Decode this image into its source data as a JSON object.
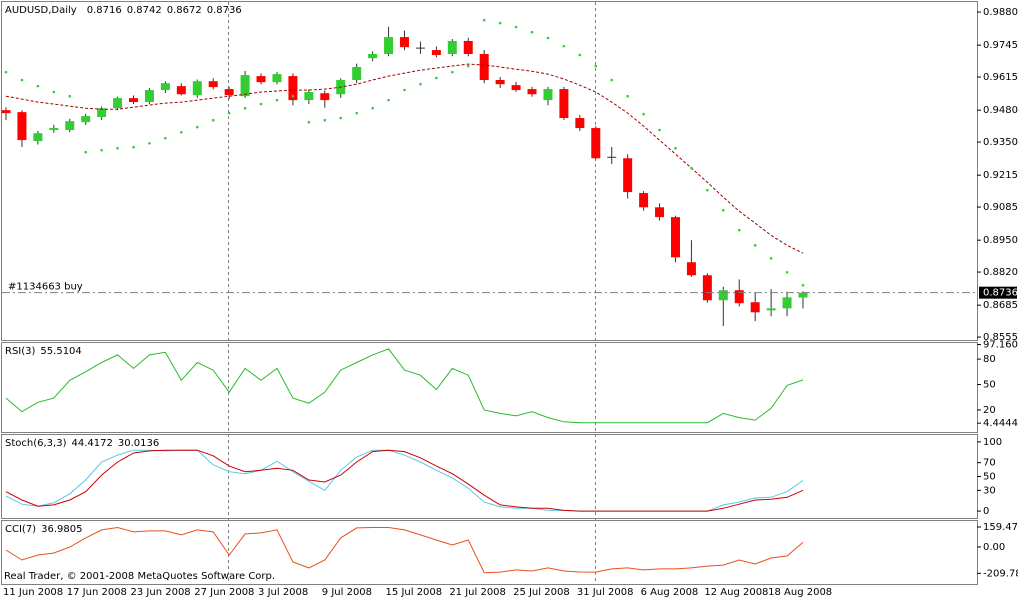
{
  "footer": "Real Trader, © 2001-2008 MetaQuotes Software Corp.",
  "chart_data": [
    {
      "type": "candlestick",
      "title": "AUDUSD,Daily",
      "categories": [
        "11 Jun 2008",
        null,
        null,
        null,
        "17 Jun 2008",
        null,
        null,
        null,
        "23 Jun 2008",
        null,
        null,
        null,
        "27 Jun 2008",
        null,
        null,
        null,
        "3 Jul 2008",
        null,
        null,
        null,
        "9 Jul 2008",
        null,
        null,
        null,
        "15 Jul 2008",
        null,
        null,
        null,
        "21 Jul 2008",
        null,
        null,
        null,
        "25 Jul 2008",
        null,
        null,
        null,
        "31 Jul 2008",
        null,
        null,
        null,
        "6 Aug 2008",
        null,
        null,
        null,
        "12 Aug 2008",
        null,
        null,
        null,
        "18 Aug 2008",
        null,
        null
      ],
      "open": [
        0.948,
        0.9472,
        0.9354,
        0.9399,
        0.9399,
        0.9431,
        0.9452,
        0.9488,
        0.9529,
        0.9513,
        0.9562,
        0.9578,
        0.9541,
        0.9598,
        0.9566,
        0.9537,
        0.9619,
        0.9594,
        0.9619,
        0.9521,
        0.9549,
        0.9545,
        0.9603,
        0.9692,
        0.9709,
        0.9778,
        0.9733,
        0.9725,
        0.9709,
        0.9762,
        0.9709,
        0.9603,
        0.9582,
        0.9566,
        0.9521,
        0.9566,
        0.9448,
        0.9407,
        0.9288,
        0.9284,
        0.9142,
        0.9084,
        0.9044,
        0.886,
        0.8807,
        0.8705,
        0.8746,
        0.8697,
        0.8664,
        0.8672,
        0.8716
      ],
      "high": [
        0.9492,
        0.948,
        0.9395,
        0.942,
        0.9445,
        0.9465,
        0.9495,
        0.9535,
        0.954,
        0.957,
        0.9598,
        0.959,
        0.9605,
        0.961,
        0.9575,
        0.964,
        0.963,
        0.9635,
        0.963,
        0.9565,
        0.956,
        0.961,
        0.967,
        0.972,
        0.982,
        0.9805,
        0.976,
        0.974,
        0.977,
        0.9775,
        0.9725,
        0.9615,
        0.9595,
        0.9575,
        0.9575,
        0.9575,
        0.946,
        0.9415,
        0.933,
        0.93,
        0.915,
        0.91,
        0.905,
        0.895,
        0.8815,
        0.876,
        0.879,
        0.8735,
        0.875,
        0.874,
        0.8742
      ],
      "low": [
        0.944,
        0.933,
        0.934,
        0.9388,
        0.939,
        0.942,
        0.944,
        0.948,
        0.9505,
        0.9505,
        0.955,
        0.954,
        0.953,
        0.9565,
        0.9525,
        0.953,
        0.9585,
        0.9585,
        0.95,
        0.9505,
        0.949,
        0.953,
        0.959,
        0.968,
        0.97,
        0.9725,
        0.971,
        0.9695,
        0.97,
        0.97,
        0.959,
        0.957,
        0.9555,
        0.9535,
        0.95,
        0.944,
        0.9395,
        0.928,
        0.926,
        0.912,
        0.907,
        0.903,
        0.886,
        0.88,
        0.8695,
        0.86,
        0.868,
        0.862,
        0.864,
        0.864,
        0.8672
      ],
      "close": [
        0.9468,
        0.9358,
        0.9386,
        0.9407,
        0.9435,
        0.9456,
        0.9488,
        0.9529,
        0.9513,
        0.9562,
        0.959,
        0.9545,
        0.9598,
        0.9574,
        0.9541,
        0.9623,
        0.9594,
        0.9627,
        0.9521,
        0.9554,
        0.9521,
        0.9603,
        0.9656,
        0.9709,
        0.9778,
        0.9737,
        0.9733,
        0.9705,
        0.9762,
        0.9709,
        0.9603,
        0.9586,
        0.9562,
        0.9545,
        0.9566,
        0.9448,
        0.9407,
        0.9284,
        0.9288,
        0.9146,
        0.9084,
        0.9044,
        0.888,
        0.8807,
        0.8705,
        0.8746,
        0.8693,
        0.8656,
        0.8672,
        0.8717,
        0.8736
      ],
      "up_color": "#32cd32",
      "down_color": "#ff0000",
      "wick_color": "#333333",
      "series": [
        {
          "style": "dashed",
          "color": "#a00000",
          "values": [
            0.9537,
            0.9525,
            0.9513,
            0.9505,
            0.9496,
            0.9488,
            0.9484,
            0.9484,
            0.9492,
            0.9501,
            0.9509,
            0.9513,
            0.9521,
            0.9529,
            0.9537,
            0.9545,
            0.9554,
            0.9558,
            0.9562,
            0.9562,
            0.9566,
            0.9574,
            0.9586,
            0.9603,
            0.9619,
            0.9631,
            0.9643,
            0.9652,
            0.966,
            0.9668,
            0.9664,
            0.9656,
            0.9647,
            0.9639,
            0.9627,
            0.9607,
            0.9582,
            0.9554,
            0.9513,
            0.9468,
            0.9415,
            0.9358,
            0.9301,
            0.9244,
            0.9186,
            0.9125,
            0.9068,
            0.9019,
            0.897,
            0.8929,
            0.8897
          ]
        },
        {
          "style": "dots",
          "color": "#32cd32",
          "values": [
            0.9635,
            0.9603,
            0.9578,
            0.9554,
            0.9537,
            0.9309,
            0.9317,
            0.9325,
            0.9329,
            0.9345,
            0.9366,
            0.939,
            0.9411,
            0.9439,
            0.9468,
            0.9488,
            0.9505,
            0.9521,
            0.9537,
            0.9431,
            0.9439,
            0.9448,
            0.9468,
            0.9488,
            0.9521,
            0.9562,
            0.9586,
            0.9611,
            0.9635,
            0.966,
            0.9847,
            0.9835,
            0.9819,
            0.9798,
            0.9774,
            0.9741,
            0.9705,
            0.966,
            0.9603,
            0.9537,
            0.9464,
            0.9399,
            0.9325,
            0.9244,
            0.9154,
            0.9072,
            0.8991,
            0.8929,
            0.8876,
            0.8819,
            0.8766
          ]
        }
      ],
      "order_label": "#1134663 buy",
      "ylim": [
        0.8543,
        0.9921
      ],
      "yticks": [
        {
          "value": 0.988,
          "label": "0.9880"
        },
        0.9745,
        0.9615,
        {
          "value": 0.948,
          "label": "0.9480"
        },
        {
          "value": 0.935,
          "label": "0.9350"
        },
        0.9215,
        0.9085,
        {
          "value": 0.895,
          "label": "0.8950"
        },
        {
          "value": 0.882,
          "label": "0.8820"
        },
        0.8685,
        0.8555
      ]
    },
    {
      "type": "line",
      "title": "RSI(3)",
      "series": [
        {
          "style": "line",
          "color": "#2db82d",
          "values": [
            34,
            18,
            29,
            34,
            55,
            65,
            76,
            85,
            69,
            85,
            88,
            55,
            76,
            67,
            41,
            69,
            55,
            69,
            34,
            28,
            41,
            67,
            76,
            85,
            92,
            67,
            61,
            44,
            69,
            61,
            20,
            16,
            13,
            18,
            11,
            6,
            5,
            5,
            5,
            5,
            5,
            5,
            5,
            5,
            5,
            16,
            11,
            8,
            22,
            49,
            55.5104
          ]
        }
      ],
      "ylim": [
        -6,
        99
      ],
      "yticks": [
        97.1605,
        80,
        50,
        20,
        4.4444
      ]
    },
    {
      "type": "line",
      "title": "Stoch(6,3,3)",
      "series": [
        {
          "style": "line",
          "color": "#5bc8e6",
          "values": [
            22,
            10,
            7,
            12,
            25,
            45,
            71,
            81,
            88,
            88,
            87,
            88,
            88,
            67,
            57,
            54,
            59,
            72,
            57,
            43,
            30,
            59,
            78,
            88,
            88,
            81,
            71,
            59,
            48,
            33,
            13,
            6,
            4,
            4,
            1,
            1,
            0,
            0,
            0,
            0,
            0,
            0,
            0,
            0,
            0,
            9,
            13,
            19,
            20,
            28,
            44.4172
          ]
        },
        {
          "style": "line",
          "color": "#cc0000",
          "values": [
            28,
            16,
            7,
            9,
            16,
            28,
            52,
            71,
            84,
            87,
            88,
            88,
            88,
            80,
            65,
            57,
            59,
            62,
            59,
            45,
            42,
            52,
            71,
            86,
            88,
            86,
            77,
            65,
            54,
            39,
            23,
            9,
            6,
            4,
            4,
            1,
            0,
            0,
            0,
            0,
            0,
            0,
            0,
            0,
            0,
            4,
            10,
            16,
            17,
            20,
            30.0136
          ]
        }
      ],
      "ylim": [
        -10,
        110
      ],
      "yticks": [
        100,
        70,
        50,
        30,
        0
      ]
    },
    {
      "type": "line",
      "title": "CCI(7)",
      "series": [
        {
          "style": "line",
          "color": "#e8501e",
          "values": [
            -24,
            -104,
            -64,
            -48,
            0,
            72,
            136,
            155,
            120,
            128,
            128,
            96,
            136,
            120,
            -64,
            104,
            112,
            136,
            -120,
            -167,
            -104,
            72,
            152,
            155,
            155,
            136,
            96,
            56,
            16,
            56,
            -205,
            -200,
            -183,
            -191,
            -167,
            -191,
            -199,
            -200,
            -175,
            -167,
            -183,
            -175,
            -175,
            -167,
            -152,
            -144,
            -104,
            -136,
            -88,
            -72,
            36.9805
          ]
        }
      ],
      "ylim": [
        -287,
        207
      ],
      "yticks": [
        {
          "value": 159.47,
          "label": "159.470"
        },
        {
          "value": 0,
          "label": "0.00"
        },
        {
          "value": -209.785,
          "label": "-209.785"
        }
      ]
    }
  ]
}
